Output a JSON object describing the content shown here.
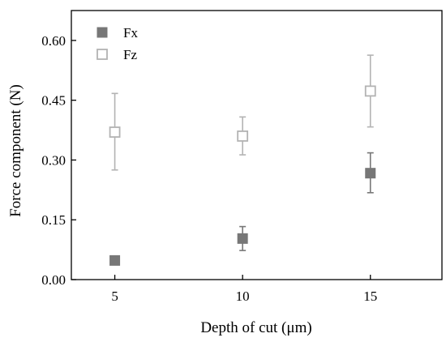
{
  "chart_data": {
    "type": "scatter",
    "xlabel": "Depth of cut (μm)",
    "ylabel": "Force component (N)",
    "x": [
      5,
      10,
      15
    ],
    "x_ticks": [
      "5",
      "10",
      "15"
    ],
    "xlim": [
      3.3,
      17.8
    ],
    "ylim": [
      0,
      0.675
    ],
    "y_ticks": [
      0.0,
      0.15,
      0.3,
      0.45,
      0.6
    ],
    "y_tick_labels": [
      "0.00",
      "0.15",
      "0.30",
      "0.45",
      "0.60"
    ],
    "grid": false,
    "legend_position": "top-left",
    "error_bars": true,
    "series": [
      {
        "name": "Fx",
        "marker": "filled-square",
        "color": "#777777",
        "values": [
          0.048,
          0.103,
          0.267
        ],
        "error_low": [
          0.048,
          0.073,
          0.218
        ],
        "error_high": [
          0.048,
          0.133,
          0.318
        ]
      },
      {
        "name": "Fz",
        "marker": "open-square",
        "color": "#b3b3b3",
        "values": [
          0.37,
          0.36,
          0.473
        ],
        "error_low": [
          0.275,
          0.313,
          0.383
        ],
        "error_high": [
          0.467,
          0.408,
          0.563
        ]
      }
    ]
  }
}
